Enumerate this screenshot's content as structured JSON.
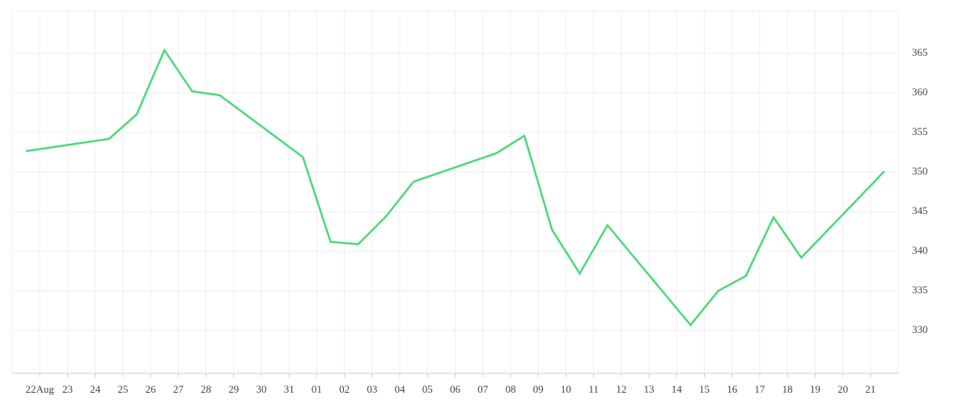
{
  "chart_data": {
    "type": "line",
    "x": [
      -0.5,
      2.5,
      3.5,
      4.5,
      5.5,
      6.5,
      9.5,
      10.5,
      11.5,
      12.5,
      13.5,
      16.5,
      17.5,
      18.5,
      19.5,
      20.5,
      23.5,
      24.5,
      25.5,
      26.5,
      27.5,
      30.5
    ],
    "series": [
      {
        "color": "#4cd97b",
        "values": [
          352.65,
          354.2,
          357.3,
          365.4,
          360.2,
          359.7,
          351.9,
          341.2,
          340.9,
          344.4,
          348.8,
          352.4,
          354.6,
          342.7,
          337.2,
          343.3,
          330.7,
          335.0,
          336.9,
          344.3,
          339.2,
          350.1
        ]
      }
    ],
    "xlim": [
      -1,
      31
    ],
    "xticks": [
      {
        "value": 0,
        "label": "22Aug"
      },
      {
        "value": 1,
        "label": "23"
      },
      {
        "value": 2,
        "label": "24"
      },
      {
        "value": 3,
        "label": "25"
      },
      {
        "value": 4,
        "label": "26"
      },
      {
        "value": 5,
        "label": "27"
      },
      {
        "value": 6,
        "label": "28"
      },
      {
        "value": 7,
        "label": "29"
      },
      {
        "value": 8,
        "label": "30"
      },
      {
        "value": 9,
        "label": "31"
      },
      {
        "value": 10,
        "label": "01"
      },
      {
        "value": 11,
        "label": "02"
      },
      {
        "value": 12,
        "label": "03"
      },
      {
        "value": 13,
        "label": "04"
      },
      {
        "value": 14,
        "label": "05"
      },
      {
        "value": 15,
        "label": "06"
      },
      {
        "value": 16,
        "label": "07"
      },
      {
        "value": 17,
        "label": "08"
      },
      {
        "value": 18,
        "label": "09"
      },
      {
        "value": 19,
        "label": "10"
      },
      {
        "value": 20,
        "label": "11"
      },
      {
        "value": 21,
        "label": "12"
      },
      {
        "value": 22,
        "label": "13"
      },
      {
        "value": 23,
        "label": "14"
      },
      {
        "value": 24,
        "label": "15"
      },
      {
        "value": 25,
        "label": "16"
      },
      {
        "value": 26,
        "label": "17"
      },
      {
        "value": 27,
        "label": "18"
      },
      {
        "value": 28,
        "label": "19"
      },
      {
        "value": 29,
        "label": "20"
      },
      {
        "value": 30,
        "label": "21"
      }
    ],
    "ylim": [
      324.6,
      370.3
    ],
    "yticks": [
      330,
      335,
      340,
      345,
      350,
      355,
      360,
      365
    ],
    "grid": true,
    "y_axis_side": "right"
  }
}
